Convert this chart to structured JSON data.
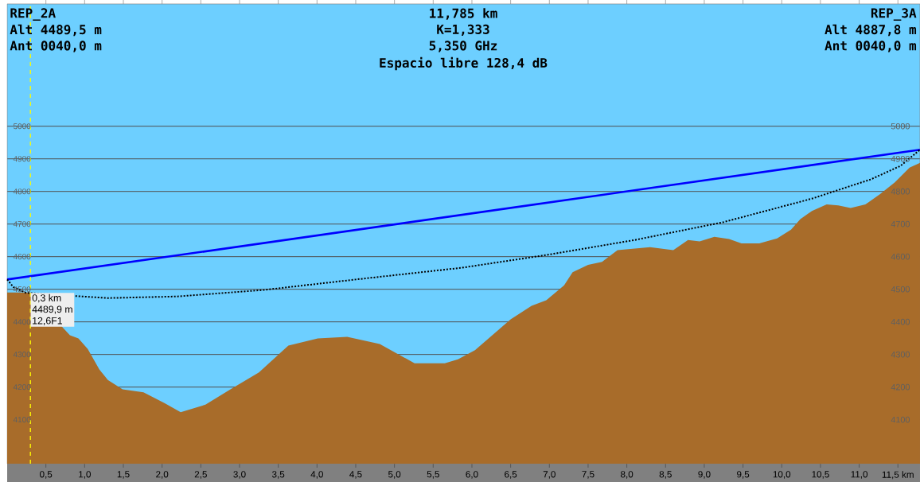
{
  "chart_data": {
    "type": "area",
    "annotations": [
      "REP_2A",
      "Alt 4489,5 m",
      "Ant 0040,0 m",
      "11,785 km",
      "K=1,333",
      "5,350 GHz",
      "Espacio libre 128,4 dB",
      "REP_3A",
      "Alt 4887,8 m",
      "Ant 0040,0 m",
      {
        "text": "0,3 km",
        "x": 0.3,
        "y": 4489.9
      },
      "4489,9 m",
      "12,6F1"
    ],
    "series": [
      {
        "color": "#a86c2a",
        "x": [
          0,
          0.28,
          0.3,
          0.81,
          0.92,
          1.04,
          1.19,
          1.3,
          1.49,
          1.76,
          2.03,
          2.24,
          2.56,
          2.87,
          3.25,
          3.63,
          4.01,
          4.39,
          4.81,
          5.26,
          5.65,
          5.82,
          6.04,
          6.5,
          6.77,
          6.96,
          7.19,
          7.3,
          7.5,
          7.68,
          7.88,
          8.3,
          8.6,
          8.79,
          8.94,
          9.13,
          9.32,
          9.48,
          9.71,
          9.94,
          10.12,
          10.24,
          10.39,
          10.58,
          10.73,
          10.89,
          11.08,
          11.27,
          11.46,
          11.65,
          11.785
        ],
        "values": [
          4490,
          4490,
          4490,
          4359,
          4349,
          4317,
          4254,
          4222,
          4193,
          4184,
          4151,
          4123,
          4146,
          4191,
          4245,
          4327,
          4349,
          4354,
          4332,
          4273,
          4273,
          4285,
          4313,
          4408,
          4449,
          4466,
          4512,
          4552,
          4575,
          4584,
          4620,
          4629,
          4620,
          4651,
          4647,
          4661,
          4654,
          4641,
          4641,
          4656,
          4683,
          4715,
          4740,
          4760,
          4757,
          4749,
          4760,
          4792,
          4828,
          4873,
          4888
        ]
      },
      {
        "type": "line",
        "color": "#0000ff",
        "line_style": "solid",
        "x": [
          0,
          11.785
        ],
        "values": [
          4530,
          4928
        ]
      },
      {
        "type": "line",
        "color": "#000000",
        "line_style": "dotted",
        "x": [
          0,
          0.08,
          0.24,
          0.6,
          1.3,
          2.2,
          3.32,
          4.5,
          5.87,
          6.96,
          8.1,
          9.25,
          10.39,
          11.15,
          11.53,
          11.785
        ],
        "values": [
          4530,
          4507,
          4489,
          null,
          4473,
          4478,
          4498,
          4530,
          4566,
          4605,
          4651,
          4706,
          4778,
          4837,
          4878,
          4928
        ]
      }
    ],
    "xlim": [
      0,
      11.785
    ],
    "xticks": [
      {
        "value": 0.5,
        "label": "0,5"
      },
      {
        "value": 1,
        "label": "1,0"
      },
      {
        "value": 1.5,
        "label": "1,5"
      },
      {
        "value": 2,
        "label": "2,0"
      },
      {
        "value": 2.5,
        "label": "2,5"
      },
      {
        "value": 3,
        "label": "3,0"
      },
      {
        "value": 3.5,
        "label": "3,5"
      },
      {
        "value": 4,
        "label": "4,0"
      },
      {
        "value": 4.5,
        "label": "4,5"
      },
      {
        "value": 5,
        "label": "5,0"
      },
      {
        "value": 5.5,
        "label": "5,5"
      },
      {
        "value": 6,
        "label": "6,0"
      },
      {
        "value": 6.5,
        "label": "6,5"
      },
      {
        "value": 7,
        "label": "7,0"
      },
      {
        "value": 7.5,
        "label": "7,5"
      },
      {
        "value": 8,
        "label": "8,0"
      },
      {
        "value": 8.5,
        "label": "8,5"
      },
      {
        "value": 9,
        "label": "9,0"
      },
      {
        "value": 9.5,
        "label": "9,5"
      },
      {
        "value": 10,
        "label": "10,0"
      },
      {
        "value": 10.5,
        "label": "10,5"
      },
      {
        "value": 11,
        "label": "11,0"
      },
      {
        "value": 11.5,
        "label": "11,5 km"
      }
    ],
    "ylim": [
      3965,
      5375
    ],
    "yticks": [
      4100,
      4200,
      4300,
      4400,
      4500,
      4600,
      4700,
      4800,
      4900,
      5000
    ],
    "y2lim": [
      3965,
      5375
    ],
    "y2ticks": [
      4100,
      4200,
      4300,
      4400,
      4500,
      4600,
      4700,
      4800,
      4900,
      5000
    ],
    "grid": "y",
    "ref_lines": [
      {
        "axis": "x",
        "value": 0.3,
        "color": "#ffff00",
        "line_style": "dashed"
      }
    ]
  }
}
